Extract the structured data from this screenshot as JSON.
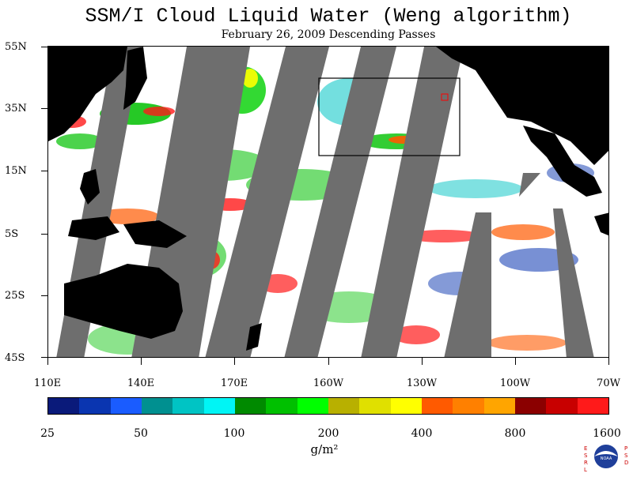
{
  "title": "SSM/I Cloud Liquid Water (Weng algorithm)",
  "subtitle": "February 26, 2009  Descending Passes",
  "lat_labels": [
    "55N",
    "35N",
    "15N",
    "5S",
    "25S",
    "45S"
  ],
  "lon_labels": [
    "110E",
    "140E",
    "170E",
    "160W",
    "130W",
    "100W",
    "70W"
  ],
  "colorbar": {
    "colors": [
      "#0a1a7a",
      "#0a35b0",
      "#1a5cff",
      "#009090",
      "#00c4c4",
      "#00f5f5",
      "#008a00",
      "#00c000",
      "#00ff00",
      "#b8b000",
      "#e0e000",
      "#ffff00",
      "#ff5a00",
      "#ff8000",
      "#ffa500",
      "#8b0000",
      "#c80000",
      "#ff1a1a"
    ],
    "labels": [
      "25",
      "50",
      "100",
      "200",
      "400",
      "800",
      "1600"
    ],
    "unit": "g/m²"
  },
  "logo": {
    "left_text": "ESRL",
    "right_text": "PSD",
    "center_text": "NOAA"
  }
}
